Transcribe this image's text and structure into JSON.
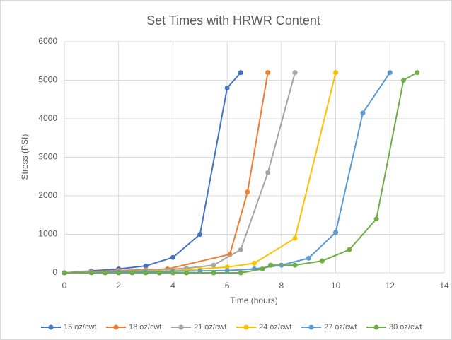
{
  "chart_data": {
    "type": "line",
    "title": "Set Times with HRWR Content",
    "x_label": "Time (hours)",
    "y_label": "Stress (PSI)",
    "xlim": [
      0,
      14
    ],
    "xticks": [
      0,
      2,
      4,
      6,
      8,
      10,
      12,
      14
    ],
    "ylim": [
      0,
      6000
    ],
    "yticks": [
      0,
      1000,
      2000,
      3000,
      4000,
      5000,
      6000
    ],
    "grid": true,
    "legend": "bottom",
    "series": [
      {
        "name": "15 oz/cwt",
        "color": "#4472c4",
        "x": [
          0,
          1,
          2,
          3,
          4,
          5,
          6,
          6.5
        ],
        "values": [
          0,
          50,
          100,
          180,
          400,
          1000,
          4800,
          5200
        ]
      },
      {
        "name": "18 oz/cwt",
        "color": "#ed7d31",
        "x": [
          0,
          1,
          2,
          3,
          3.8,
          6.1,
          6.75,
          7.5
        ],
        "values": [
          0,
          30,
          60,
          80,
          100,
          480,
          2100,
          5200
        ]
      },
      {
        "name": "21 oz/cwt",
        "color": "#a5a5a5",
        "x": [
          0,
          1,
          2,
          3,
          4.5,
          5.5,
          6.5,
          7.5,
          8.5
        ],
        "values": [
          0,
          20,
          40,
          60,
          120,
          200,
          600,
          2600,
          5200
        ]
      },
      {
        "name": "24 oz/cwt",
        "color": "#ffc000",
        "x": [
          0,
          1,
          2,
          3,
          4,
          5,
          6,
          7,
          8.5,
          10
        ],
        "values": [
          0,
          10,
          20,
          40,
          60,
          100,
          150,
          250,
          900,
          5200
        ]
      },
      {
        "name": "27 oz/cwt",
        "color": "#5b9bd5",
        "x": [
          0,
          1,
          2,
          3,
          4,
          5,
          6,
          7,
          8,
          9,
          10,
          11,
          12
        ],
        "values": [
          0,
          10,
          20,
          30,
          40,
          50,
          60,
          100,
          200,
          380,
          1050,
          4150,
          5200
        ]
      },
      {
        "name": "30 oz/cwt",
        "color": "#70ad47",
        "x": [
          0,
          1,
          1.5,
          2,
          2.5,
          3,
          3.5,
          4,
          4.5,
          5.5,
          6.5,
          7.3,
          7.6,
          8.5,
          9.5,
          10.5,
          11.5,
          12.5,
          13
        ],
        "values": [
          0,
          0,
          0,
          0,
          0,
          0,
          0,
          0,
          0,
          0,
          0,
          100,
          200,
          200,
          310,
          600,
          1400,
          5000,
          5200
        ]
      }
    ]
  }
}
